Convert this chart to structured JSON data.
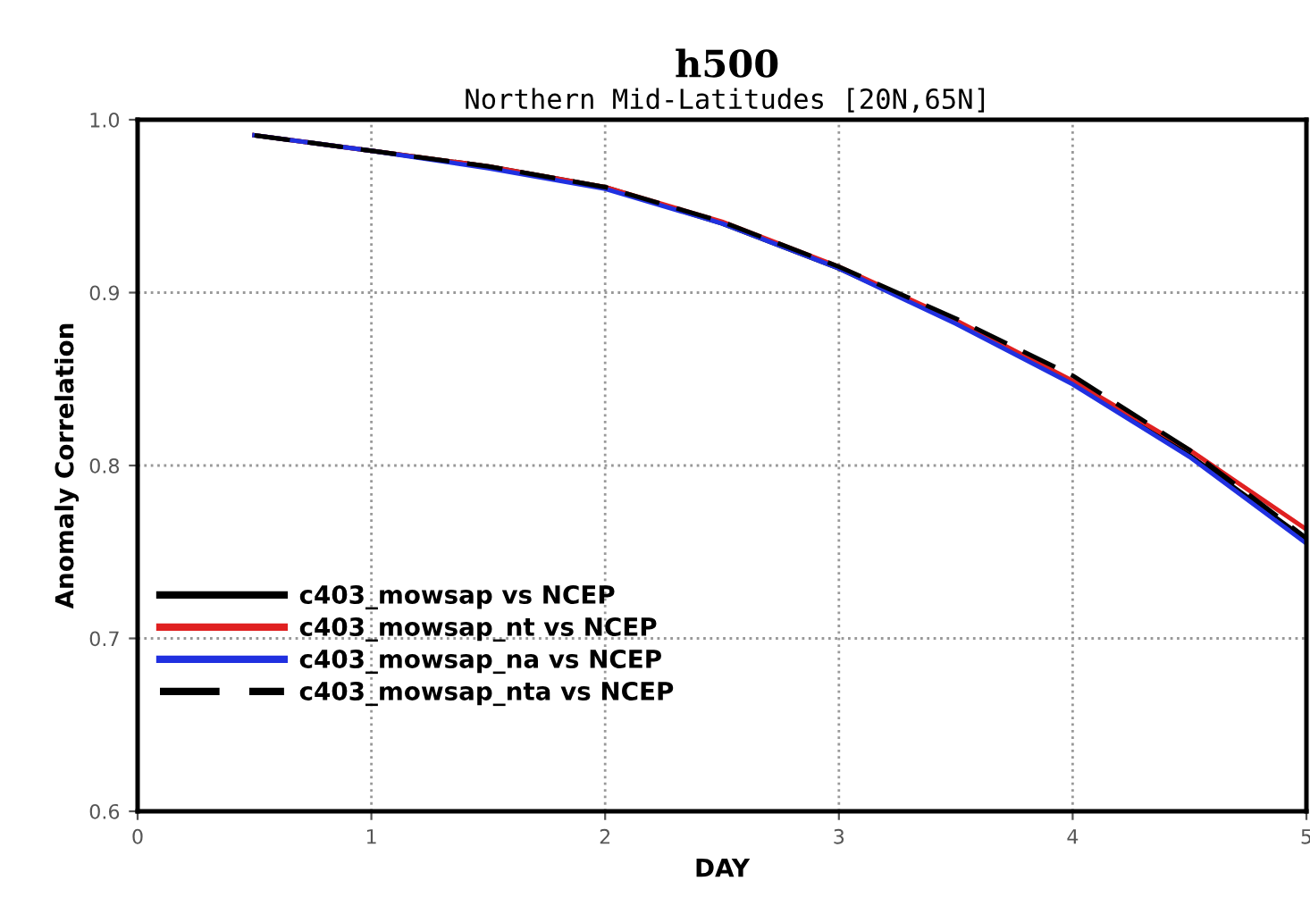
{
  "chart_data": {
    "type": "line",
    "title": "h500",
    "subtitle": "Northern Mid-Latitudes [20N,65N]",
    "xlabel": "DAY",
    "ylabel": "Anomaly Correlation",
    "x": [
      0.5,
      1,
      1.5,
      2,
      2.5,
      3,
      3.5,
      4,
      4.5,
      5
    ],
    "series": [
      {
        "name": "c403_mowsap vs NCEP",
        "color": "#000000",
        "values": [
          0.991,
          0.982,
          0.973,
          0.961,
          0.94,
          0.914,
          0.883,
          0.848,
          0.806,
          0.757
        ]
      },
      {
        "name": "c403_mowsap_nt vs NCEP",
        "color": "#e02020",
        "values": [
          0.991,
          0.982,
          0.973,
          0.961,
          0.941,
          0.915,
          0.884,
          0.849,
          0.809,
          0.763
        ]
      },
      {
        "name": "c403_mowsap_na vs NCEP",
        "color": "#2030e0",
        "values": [
          0.991,
          0.982,
          0.972,
          0.96,
          0.94,
          0.914,
          0.882,
          0.847,
          0.805,
          0.755
        ]
      },
      {
        "name": "c403_mowsap_nta vs NCEP",
        "color": "#000000",
        "line_style": "dashed",
        "values": [
          0.991,
          0.982,
          0.973,
          0.961,
          0.941,
          0.915,
          0.885,
          0.852,
          0.809,
          0.758
        ]
      }
    ],
    "xlim": [
      0,
      5
    ],
    "xticks": [
      0,
      1,
      2,
      3,
      4,
      5
    ],
    "ylim": [
      0.6,
      1.0
    ],
    "yticks": [
      0.6,
      0.7,
      0.8,
      0.9,
      {
        "value": 1.0,
        "label": "1.0"
      }
    ],
    "grid": true,
    "legend": "bottom left",
    "line_style": "solid"
  }
}
